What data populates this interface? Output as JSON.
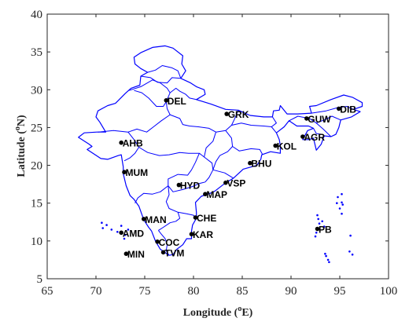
{
  "axes": {
    "x_label_prefix": "Longitude (",
    "x_label_sup": "o",
    "x_label_suffix": "E)",
    "y_label_prefix": "Latitude (",
    "y_label_sup": "o",
    "y_label_suffix": "N)",
    "xlim": [
      65,
      100
    ],
    "ylim": [
      5,
      40
    ],
    "x_ticks": [
      "65",
      "70",
      "75",
      "80",
      "85",
      "90",
      "95",
      "100"
    ],
    "y_ticks": [
      "5",
      "10",
      "15",
      "20",
      "25",
      "30",
      "35",
      "40"
    ],
    "grid": false
  },
  "colors": {
    "boundary": "#0000ff",
    "station": "#000000",
    "axis": "#262626"
  },
  "stations": [
    {
      "code": "DEL",
      "lon": 77.2,
      "lat": 28.6
    },
    {
      "code": "GRK",
      "lon": 83.4,
      "lat": 26.8
    },
    {
      "code": "DIB",
      "lon": 94.9,
      "lat": 27.5
    },
    {
      "code": "GUW",
      "lon": 91.6,
      "lat": 26.2
    },
    {
      "code": "AGR",
      "lon": 91.2,
      "lat": 23.8
    },
    {
      "code": "KOL",
      "lon": 88.4,
      "lat": 22.6
    },
    {
      "code": "AHB",
      "lon": 72.6,
      "lat": 23.0
    },
    {
      "code": "BHU",
      "lon": 85.8,
      "lat": 20.3
    },
    {
      "code": "MUM",
      "lon": 72.9,
      "lat": 19.1
    },
    {
      "code": "HYD",
      "lon": 78.5,
      "lat": 17.4
    },
    {
      "code": "VSP",
      "lon": 83.3,
      "lat": 17.7
    },
    {
      "code": "MAP",
      "lon": 81.2,
      "lat": 16.2
    },
    {
      "code": "MAN",
      "lon": 74.9,
      "lat": 12.9
    },
    {
      "code": "CHE",
      "lon": 80.2,
      "lat": 13.1
    },
    {
      "code": "AMD",
      "lon": 72.6,
      "lat": 11.1
    },
    {
      "code": "PB",
      "lon": 92.7,
      "lat": 11.6
    },
    {
      "code": "KAR",
      "lon": 79.8,
      "lat": 10.9
    },
    {
      "code": "COC",
      "lon": 76.3,
      "lat": 9.9
    },
    {
      "code": "MIN",
      "lon": 73.1,
      "lat": 8.3
    },
    {
      "code": "TVM",
      "lon": 76.9,
      "lat": 8.5
    }
  ],
  "boundaries": {
    "india_outline": [
      [
        68.2,
        23.7
      ],
      [
        68.8,
        24.3
      ],
      [
        70.1,
        24.4
      ],
      [
        71.0,
        24.4
      ],
      [
        70.4,
        25.7
      ],
      [
        70.0,
        26.4
      ],
      [
        70.2,
        27.2
      ],
      [
        71.2,
        27.9
      ],
      [
        72.0,
        28.2
      ],
      [
        73.0,
        29.5
      ],
      [
        73.6,
        30.2
      ],
      [
        74.5,
        30.6
      ],
      [
        74.6,
        31.8
      ],
      [
        75.3,
        32.3
      ],
      [
        74.6,
        32.8
      ],
      [
        74.0,
        33.4
      ],
      [
        73.9,
        34.3
      ],
      [
        74.6,
        34.9
      ],
      [
        75.8,
        35.6
      ],
      [
        77.1,
        35.8
      ],
      [
        77.9,
        35.5
      ],
      [
        78.9,
        34.5
      ],
      [
        78.8,
        33.4
      ],
      [
        79.2,
        32.5
      ],
      [
        78.7,
        31.5
      ],
      [
        79.7,
        30.9
      ],
      [
        80.3,
        30.4
      ],
      [
        81.1,
        30.0
      ],
      [
        81.2,
        29.4
      ],
      [
        80.3,
        28.7
      ],
      [
        81.8,
        28.1
      ],
      [
        83.3,
        27.4
      ],
      [
        84.6,
        27.3
      ],
      [
        85.8,
        26.6
      ],
      [
        87.2,
        26.4
      ],
      [
        88.1,
        26.4
      ],
      [
        88.2,
        27.2
      ],
      [
        88.8,
        27.3
      ],
      [
        88.9,
        27.9
      ],
      [
        89.6,
        26.8
      ],
      [
        90.7,
        26.8
      ],
      [
        92.1,
        26.9
      ],
      [
        91.9,
        27.8
      ],
      [
        92.6,
        27.9
      ],
      [
        94.1,
        28.7
      ],
      [
        95.4,
        29.3
      ],
      [
        96.3,
        29.0
      ],
      [
        97.3,
        28.3
      ],
      [
        97.3,
        27.8
      ],
      [
        96.4,
        27.4
      ],
      [
        97.1,
        27.1
      ],
      [
        96.2,
        26.4
      ],
      [
        95.1,
        26.0
      ],
      [
        94.9,
        25.0
      ],
      [
        94.6,
        24.1
      ],
      [
        94.1,
        23.8
      ],
      [
        93.4,
        23.9
      ],
      [
        93.1,
        22.8
      ],
      [
        92.6,
        22.0
      ],
      [
        92.3,
        23.6
      ],
      [
        91.8,
        23.4
      ],
      [
        91.2,
        23.4
      ],
      [
        91.7,
        24.6
      ],
      [
        92.3,
        24.9
      ],
      [
        91.8,
        25.2
      ],
      [
        90.6,
        25.2
      ],
      [
        89.8,
        25.9
      ],
      [
        89.3,
        25.1
      ],
      [
        88.5,
        24.3
      ],
      [
        88.8,
        23.4
      ],
      [
        88.9,
        22.6
      ],
      [
        88.9,
        21.6
      ],
      [
        87.9,
        21.8
      ],
      [
        87.0,
        21.4
      ],
      [
        86.9,
        20.8
      ],
      [
        86.5,
        20.0
      ],
      [
        85.1,
        19.5
      ],
      [
        84.1,
        18.3
      ],
      [
        83.2,
        17.6
      ],
      [
        82.2,
        16.6
      ],
      [
        81.7,
        16.3
      ],
      [
        80.8,
        15.9
      ],
      [
        80.2,
        15.1
      ],
      [
        80.3,
        13.8
      ],
      [
        80.3,
        13.0
      ],
      [
        79.9,
        12.1
      ],
      [
        79.8,
        11.3
      ],
      [
        79.8,
        10.3
      ],
      [
        79.3,
        10.3
      ],
      [
        78.9,
        9.5
      ],
      [
        78.3,
        8.9
      ],
      [
        77.9,
        8.2
      ],
      [
        77.5,
        8.1
      ],
      [
        76.6,
        8.9
      ],
      [
        76.1,
        10.0
      ],
      [
        75.7,
        11.3
      ],
      [
        75.4,
        11.8
      ],
      [
        74.9,
        12.8
      ],
      [
        74.6,
        13.9
      ],
      [
        74.4,
        14.6
      ],
      [
        73.9,
        15.5
      ],
      [
        73.5,
        16.0
      ],
      [
        73.1,
        17.3
      ],
      [
        72.8,
        18.9
      ],
      [
        72.8,
        19.8
      ],
      [
        72.6,
        21.4
      ],
      [
        72.3,
        21.3
      ],
      [
        71.2,
        20.8
      ],
      [
        70.5,
        20.9
      ],
      [
        69.1,
        22.1
      ],
      [
        69.6,
        22.5
      ],
      [
        69.3,
        22.8
      ],
      [
        68.2,
        23.7
      ]
    ],
    "state_lines": [
      [
        [
          73.4,
          29.9
        ],
        [
          74.6,
          30.4
        ],
        [
          75.8,
          31.3
        ],
        [
          76.6,
          30.9
        ],
        [
          77.3,
          30.2
        ],
        [
          77.6,
          29.6
        ],
        [
          77.2,
          28.4
        ],
        [
          76.9,
          27.8
        ],
        [
          76.2,
          27.8
        ],
        [
          75.4,
          28.9
        ],
        [
          74.7,
          29.6
        ],
        [
          73.9,
          29.9
        ]
      ],
      [
        [
          75.3,
          32.3
        ],
        [
          76.1,
          32.6
        ],
        [
          76.8,
          33.2
        ],
        [
          77.8,
          32.9
        ],
        [
          78.4,
          32.5
        ],
        [
          78.7,
          31.5
        ]
      ],
      [
        [
          74.6,
          31.8
        ],
        [
          75.6,
          31.6
        ],
        [
          76.3,
          31.0
        ],
        [
          77.3,
          30.9
        ],
        [
          77.8,
          31.6
        ],
        [
          78.7,
          31.5
        ]
      ],
      [
        [
          77.6,
          29.6
        ],
        [
          78.2,
          30.2
        ],
        [
          78.6,
          29.8
        ],
        [
          79.2,
          29.4
        ],
        [
          79.6,
          28.9
        ],
        [
          80.3,
          28.7
        ]
      ],
      [
        [
          70.2,
          24.4
        ],
        [
          71.8,
          24.6
        ],
        [
          73.3,
          24.4
        ],
        [
          74.2,
          24.8
        ],
        [
          75.2,
          24.4
        ],
        [
          75.9,
          25.1
        ],
        [
          76.7,
          25.9
        ],
        [
          77.6,
          26.7
        ],
        [
          77.3,
          27.5
        ],
        [
          77.2,
          28.4
        ]
      ],
      [
        [
          77.6,
          26.7
        ],
        [
          78.6,
          26.2
        ],
        [
          78.9,
          25.4
        ],
        [
          79.6,
          25.2
        ],
        [
          80.5,
          25.1
        ],
        [
          81.6,
          24.9
        ],
        [
          82.3,
          24.4
        ],
        [
          83.3,
          24.6
        ],
        [
          83.9,
          25.3
        ],
        [
          84.2,
          26.1
        ],
        [
          84.6,
          27.3
        ]
      ],
      [
        [
          83.9,
          25.3
        ],
        [
          84.9,
          25.6
        ],
        [
          85.9,
          25.3
        ],
        [
          87.2,
          25.2
        ],
        [
          88.0,
          25.1
        ]
      ],
      [
        [
          83.3,
          24.6
        ],
        [
          83.9,
          23.6
        ],
        [
          84.0,
          22.5
        ],
        [
          84.7,
          21.9
        ],
        [
          85.9,
          22.2
        ],
        [
          86.8,
          22.1
        ],
        [
          87.1,
          21.4
        ]
      ],
      [
        [
          82.3,
          24.4
        ],
        [
          82.0,
          23.2
        ],
        [
          81.3,
          22.3
        ],
        [
          81.1,
          21.1
        ],
        [
          81.9,
          20.3
        ],
        [
          82.0,
          19.4
        ],
        [
          81.6,
          18.4
        ],
        [
          81.2,
          17.8
        ]
      ],
      [
        [
          84.0,
          22.5
        ],
        [
          83.5,
          21.8
        ],
        [
          82.7,
          21.3
        ],
        [
          82.3,
          20.5
        ],
        [
          82.0,
          19.4
        ]
      ],
      [
        [
          82.0,
          19.4
        ],
        [
          83.2,
          19.0
        ],
        [
          84.1,
          18.3
        ]
      ],
      [
        [
          73.3,
          24.4
        ],
        [
          73.9,
          23.4
        ],
        [
          74.4,
          22.4
        ],
        [
          74.0,
          21.6
        ],
        [
          73.5,
          21.0
        ],
        [
          72.9,
          20.6
        ]
      ],
      [
        [
          74.4,
          22.4
        ],
        [
          75.3,
          21.7
        ],
        [
          76.5,
          21.3
        ],
        [
          77.5,
          21.4
        ],
        [
          78.6,
          21.7
        ],
        [
          79.5,
          21.6
        ],
        [
          80.6,
          21.6
        ],
        [
          81.1,
          21.1
        ]
      ],
      [
        [
          80.6,
          21.6
        ],
        [
          80.2,
          20.4
        ],
        [
          79.8,
          19.4
        ],
        [
          79.4,
          18.7
        ],
        [
          78.4,
          18.8
        ],
        [
          77.4,
          18.2
        ],
        [
          77.4,
          17.3
        ],
        [
          76.6,
          16.5
        ],
        [
          75.8,
          16.2
        ],
        [
          74.9,
          16.3
        ],
        [
          74.3,
          15.7
        ],
        [
          74.0,
          15.0
        ]
      ],
      [
        [
          81.2,
          17.8
        ],
        [
          80.6,
          17.6
        ],
        [
          79.9,
          17.2
        ],
        [
          78.9,
          16.8
        ],
        [
          77.9,
          16.5
        ],
        [
          77.4,
          17.3
        ]
      ],
      [
        [
          77.4,
          17.3
        ],
        [
          77.5,
          16.1
        ],
        [
          77.2,
          15.2
        ],
        [
          77.5,
          14.3
        ],
        [
          78.4,
          13.8
        ],
        [
          78.6,
          13.0
        ],
        [
          78.2,
          12.6
        ],
        [
          77.6,
          12.4
        ],
        [
          76.9,
          11.8
        ],
        [
          76.4,
          11.4
        ]
      ],
      [
        [
          78.4,
          13.8
        ],
        [
          79.3,
          13.6
        ],
        [
          80.0,
          13.4
        ],
        [
          80.3,
          13.0
        ]
      ],
      [
        [
          76.4,
          11.4
        ],
        [
          76.7,
          10.9
        ],
        [
          77.1,
          10.3
        ],
        [
          77.3,
          9.5
        ],
        [
          77.2,
          8.7
        ],
        [
          77.5,
          8.1
        ]
      ],
      [
        [
          88.1,
          26.4
        ],
        [
          88.5,
          25.6
        ],
        [
          88.0,
          25.1
        ],
        [
          88.5,
          24.3
        ]
      ],
      [
        [
          89.8,
          25.9
        ],
        [
          90.7,
          26.5
        ],
        [
          91.9,
          26.2
        ],
        [
          92.6,
          25.6
        ],
        [
          93.4,
          26.0
        ],
        [
          94.2,
          26.5
        ],
        [
          95.1,
          26.0
        ]
      ],
      [
        [
          92.6,
          25.6
        ],
        [
          93.3,
          24.8
        ],
        [
          94.1,
          23.8
        ]
      ],
      [
        [
          92.3,
          24.9
        ],
        [
          92.6,
          24.2
        ],
        [
          93.2,
          24.1
        ],
        [
          93.4,
          23.9
        ]
      ],
      [
        [
          92.1,
          26.9
        ],
        [
          93.6,
          27.2
        ],
        [
          94.7,
          27.6
        ],
        [
          95.7,
          27.8
        ],
        [
          96.4,
          27.4
        ]
      ]
    ],
    "islands": [
      [
        92.7,
        13.4
      ],
      [
        92.8,
        12.9
      ],
      [
        92.9,
        12.3
      ],
      [
        92.7,
        11.7
      ],
      [
        92.6,
        11.1
      ],
      [
        92.5,
        10.6
      ],
      [
        93.2,
        12.6
      ],
      [
        93.4,
        11.9
      ],
      [
        93.5,
        8.3
      ],
      [
        93.6,
        8.0
      ],
      [
        93.9,
        7.2
      ],
      [
        93.8,
        7.5
      ],
      [
        95.0,
        14.3
      ],
      [
        95.2,
        15.1
      ],
      [
        94.8,
        15.8
      ],
      [
        95.2,
        16.2
      ],
      [
        95.3,
        14.8
      ],
      [
        94.7,
        15.0
      ],
      [
        95.2,
        13.6
      ],
      [
        96.1,
        10.7
      ],
      [
        96.3,
        8.2
      ],
      [
        96.0,
        8.6
      ],
      [
        72.6,
        11.1
      ],
      [
        72.2,
        11.2
      ],
      [
        73.0,
        10.8
      ],
      [
        72.9,
        10.3
      ],
      [
        73.3,
        11.5
      ],
      [
        73.1,
        8.3
      ],
      [
        72.6,
        12.0
      ],
      [
        71.6,
        11.5
      ],
      [
        70.7,
        11.7
      ],
      [
        70.6,
        12.4
      ],
      [
        71.1,
        12.1
      ]
    ]
  }
}
